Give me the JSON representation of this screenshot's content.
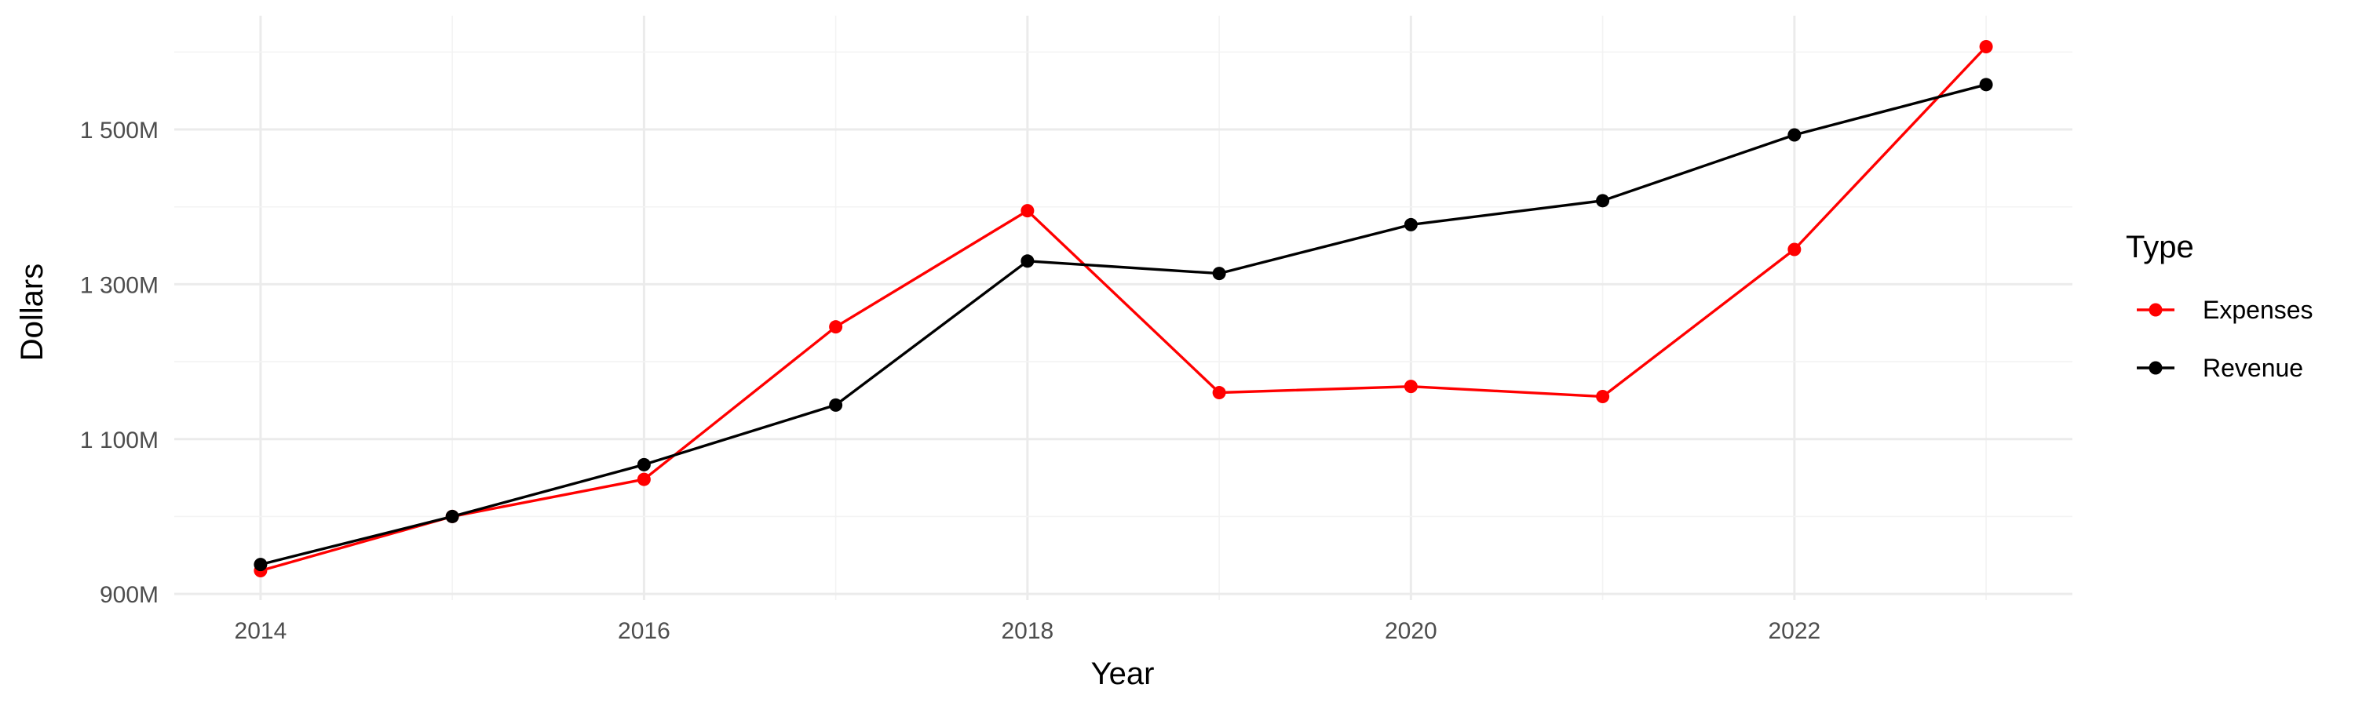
{
  "chart_data": {
    "type": "line",
    "title": "",
    "xlabel": "Year",
    "ylabel": "Dollars",
    "x": [
      2014,
      2015,
      2016,
      2017,
      2018,
      2019,
      2020,
      2021,
      2022,
      2023
    ],
    "xticks": [
      2014,
      2016,
      2018,
      2020,
      2022
    ],
    "yticks": [
      {
        "value": 900,
        "label": "900M"
      },
      {
        "value": 1100,
        "label": "1 100M"
      },
      {
        "value": 1300,
        "label": "1 300M"
      },
      {
        "value": 1500,
        "label": "1 500M"
      }
    ],
    "ylim": [
      892,
      1647
    ],
    "xlim": [
      2013.55,
      2023.45
    ],
    "grid": true,
    "legend": {
      "title": "Type",
      "position": "right"
    },
    "series": [
      {
        "name": "Expenses",
        "color": "#ff0000",
        "values": [
          930,
          1000,
          1048,
          1245,
          1395,
          1160,
          1168,
          1155,
          1345,
          1607
        ]
      },
      {
        "name": "Revenue",
        "color": "#000000",
        "values": [
          938,
          1000,
          1067,
          1144,
          1330,
          1314,
          1377,
          1408,
          1493,
          1558
        ]
      }
    ]
  }
}
